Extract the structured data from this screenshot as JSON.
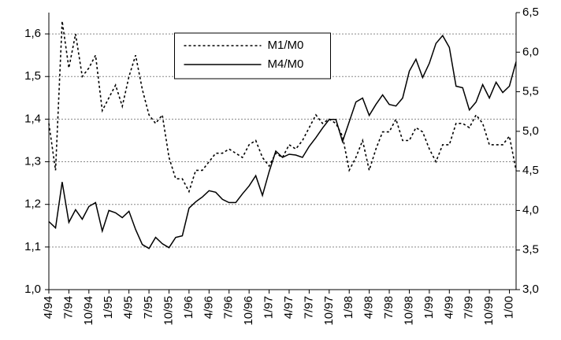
{
  "chart_data": {
    "type": "line",
    "categories": [
      "4/94",
      null,
      null,
      "7/94",
      null,
      null,
      "10/94",
      null,
      null,
      "1/95",
      null,
      null,
      "4/95",
      null,
      null,
      "7/95",
      null,
      null,
      "10/95",
      null,
      null,
      "1/96",
      null,
      null,
      "4/96",
      null,
      null,
      "7/96",
      null,
      null,
      "10/96",
      null,
      null,
      "1/97",
      null,
      null,
      "4/97",
      null,
      null,
      "7/97",
      null,
      null,
      "10/97",
      null,
      null,
      "1/98",
      null,
      null,
      "4/98",
      null,
      null,
      "7/98",
      null,
      null,
      "10/98",
      null,
      null,
      "1/99",
      null,
      null,
      "4/99",
      null,
      null,
      "7/99",
      null,
      null,
      "10/99",
      null,
      null,
      "1/00",
      null
    ],
    "series": [
      {
        "name": "M1/M0",
        "color": "#000000",
        "dash": true,
        "values": [
          1.39,
          1.28,
          1.63,
          1.52,
          1.6,
          1.5,
          1.52,
          1.55,
          1.42,
          1.45,
          1.48,
          1.43,
          1.5,
          1.55,
          1.47,
          1.41,
          1.39,
          1.41,
          1.31,
          1.26,
          1.26,
          1.23,
          1.28,
          1.28,
          1.3,
          1.32,
          1.32,
          1.33,
          1.32,
          1.31,
          1.34,
          1.35,
          1.31,
          1.29,
          1.32,
          1.31,
          1.34,
          1.33,
          1.35,
          1.38,
          1.41,
          1.39,
          1.4,
          1.39,
          1.36,
          1.28,
          1.31,
          1.35,
          1.28,
          1.33,
          1.37,
          1.37,
          1.4,
          1.35,
          1.35,
          1.38,
          1.37,
          1.33,
          1.3,
          1.34,
          1.34,
          1.39,
          1.39,
          1.38,
          1.41,
          1.39,
          1.34,
          1.34,
          1.34,
          1.36,
          1.28
        ]
      },
      {
        "name": "M4/M0",
        "color": "#000000",
        "dash": false,
        "axis": "y2",
        "values": [
          3.86,
          3.78,
          4.36,
          3.85,
          4.01,
          3.89,
          4.05,
          4.1,
          3.74,
          4.0,
          3.97,
          3.91,
          3.99,
          3.76,
          3.57,
          3.52,
          3.66,
          3.58,
          3.53,
          3.66,
          3.68,
          4.03,
          4.11,
          4.17,
          4.25,
          4.23,
          4.14,
          4.1,
          4.1,
          4.21,
          4.31,
          4.44,
          4.19,
          4.49,
          4.75,
          4.67,
          4.71,
          4.7,
          4.67,
          4.81,
          4.92,
          5.04,
          5.15,
          5.15,
          4.87,
          5.12,
          5.37,
          5.42,
          5.2,
          5.34,
          5.46,
          5.34,
          5.32,
          5.42,
          5.76,
          5.91,
          5.68,
          5.86,
          6.11,
          6.21,
          6.06,
          5.57,
          5.55,
          5.27,
          5.37,
          5.59,
          5.42,
          5.62,
          5.49,
          5.57,
          5.88
        ]
      }
    ],
    "ylim": [
      1.0,
      1.65
    ],
    "yticks": [
      {
        "value": 1.0,
        "label": "1,0"
      },
      {
        "value": 1.1,
        "label": "1,1"
      },
      {
        "value": 1.2,
        "label": "1,2"
      },
      {
        "value": 1.3,
        "label": "1,3"
      },
      {
        "value": 1.4,
        "label": "1,4"
      },
      {
        "value": 1.5,
        "label": "1,5"
      },
      {
        "value": 1.6,
        "label": "1,6"
      }
    ],
    "y2lim": [
      3.0,
      6.5
    ],
    "y2ticks": [
      {
        "value": 3.0,
        "label": "3,0"
      },
      {
        "value": 3.5,
        "label": "3,5"
      },
      {
        "value": 4.0,
        "label": "4,0"
      },
      {
        "value": 4.5,
        "label": "4,5"
      },
      {
        "value": 5.0,
        "label": "5,0"
      },
      {
        "value": 5.5,
        "label": "5,5"
      },
      {
        "value": 6.0,
        "label": "6,0"
      },
      {
        "value": 6.5,
        "label": "6,5"
      }
    ],
    "grid": true,
    "legend": "upper center"
  }
}
